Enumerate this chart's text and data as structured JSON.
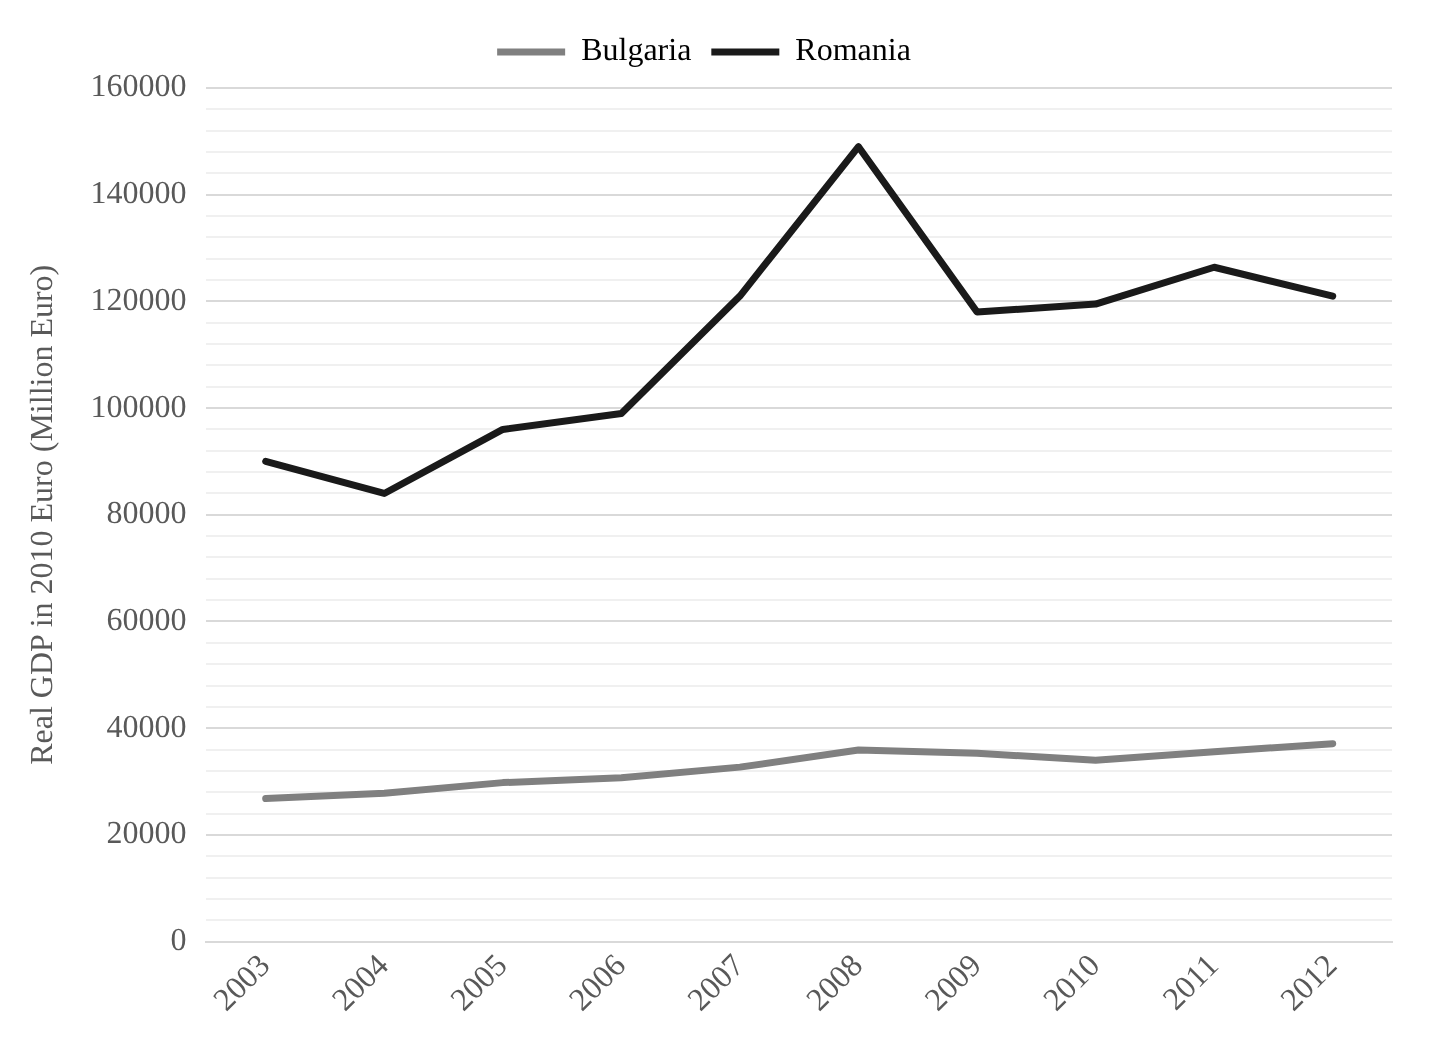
{
  "chart_data": {
    "type": "line",
    "ylabel": "Real GDP in 2010 Euro (Million Euro)",
    "categories": [
      "2003",
      "2004",
      "2005",
      "2006",
      "2007",
      "2008",
      "2009",
      "2010",
      "2011",
      "2012"
    ],
    "series": [
      {
        "name": "Bulgaria",
        "color": "#808080",
        "values": [
          26800,
          27800,
          29800,
          30700,
          32700,
          35900,
          35300,
          34000,
          35600,
          37100
        ]
      },
      {
        "name": "Romania",
        "color": "#1a1a1a",
        "values": [
          90000,
          84000,
          96000,
          99000,
          121000,
          149000,
          118000,
          119500,
          126400,
          121000
        ]
      }
    ],
    "ylim": [
      0,
      160000
    ],
    "yticks": [
      0,
      {
        "value": 4000,
        "label": null
      },
      {
        "value": 8000,
        "label": null
      },
      {
        "value": 12000,
        "label": null
      },
      {
        "value": 16000,
        "label": null
      },
      20000,
      {
        "value": 24000,
        "label": null
      },
      {
        "value": 28000,
        "label": null
      },
      {
        "value": 32000,
        "label": null
      },
      {
        "value": 36000,
        "label": null
      },
      40000,
      {
        "value": 44000,
        "label": null
      },
      {
        "value": 48000,
        "label": null
      },
      {
        "value": 52000,
        "label": null
      },
      {
        "value": 56000,
        "label": null
      },
      60000,
      {
        "value": 64000,
        "label": null
      },
      {
        "value": 68000,
        "label": null
      },
      {
        "value": 72000,
        "label": null
      },
      {
        "value": 76000,
        "label": null
      },
      80000,
      {
        "value": 84000,
        "label": null
      },
      {
        "value": 88000,
        "label": null
      },
      {
        "value": 92000,
        "label": null
      },
      {
        "value": 96000,
        "label": null
      },
      100000,
      {
        "value": 104000,
        "label": null
      },
      {
        "value": 108000,
        "label": null
      },
      {
        "value": 112000,
        "label": null
      },
      {
        "value": 116000,
        "label": null
      },
      120000,
      {
        "value": 124000,
        "label": null
      },
      {
        "value": 128000,
        "label": null
      },
      {
        "value": 132000,
        "label": null
      },
      {
        "value": 136000,
        "label": null
      },
      140000,
      {
        "value": 144000,
        "label": null
      },
      {
        "value": 148000,
        "label": null
      },
      {
        "value": 152000,
        "label": null
      },
      {
        "value": 156000,
        "label": null
      },
      160000
    ],
    "grid": "y",
    "legend": "top",
    "marker": "none",
    "line_style": "solid"
  }
}
